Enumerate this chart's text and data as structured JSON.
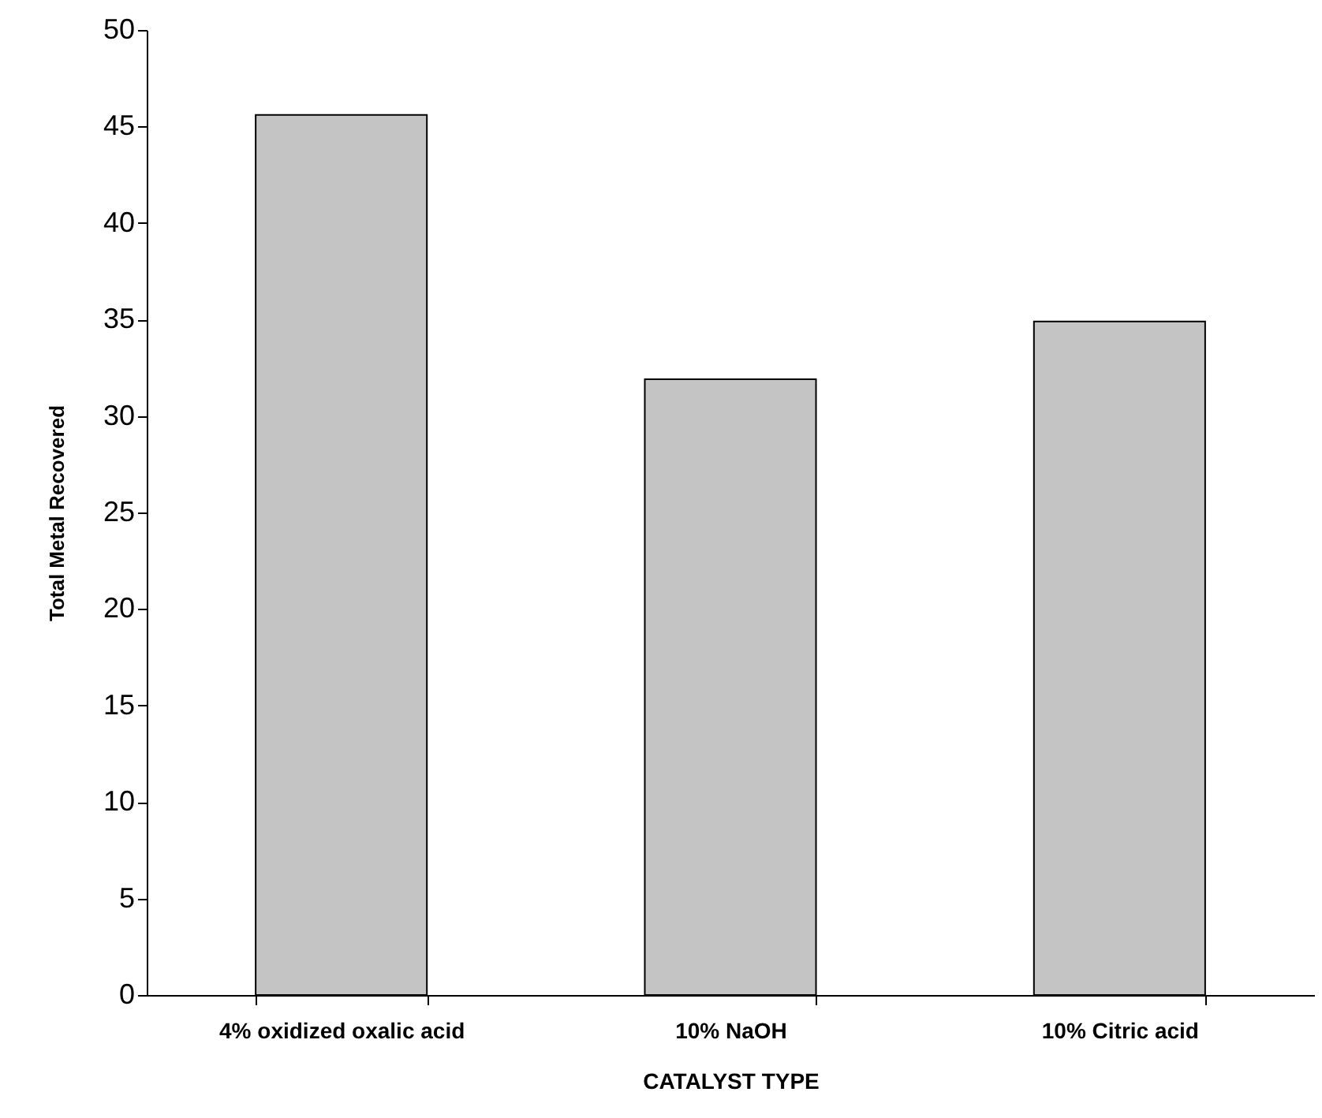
{
  "chart_data": {
    "type": "bar",
    "xlabel": "CATALYST TYPE",
    "ylabel": "Total Metal Recovered",
    "categories": [
      "4% oxidized oxalic acid",
      "10% NaOH",
      "10% Citric acid"
    ],
    "values": [
      45.6,
      31.9,
      34.9
    ],
    "color": "#c4c4c4",
    "ylim": [
      0,
      50
    ],
    "yticks": [
      0,
      5,
      10,
      15,
      20,
      25,
      30,
      35,
      40,
      45,
      50
    ],
    "grid": false
  }
}
